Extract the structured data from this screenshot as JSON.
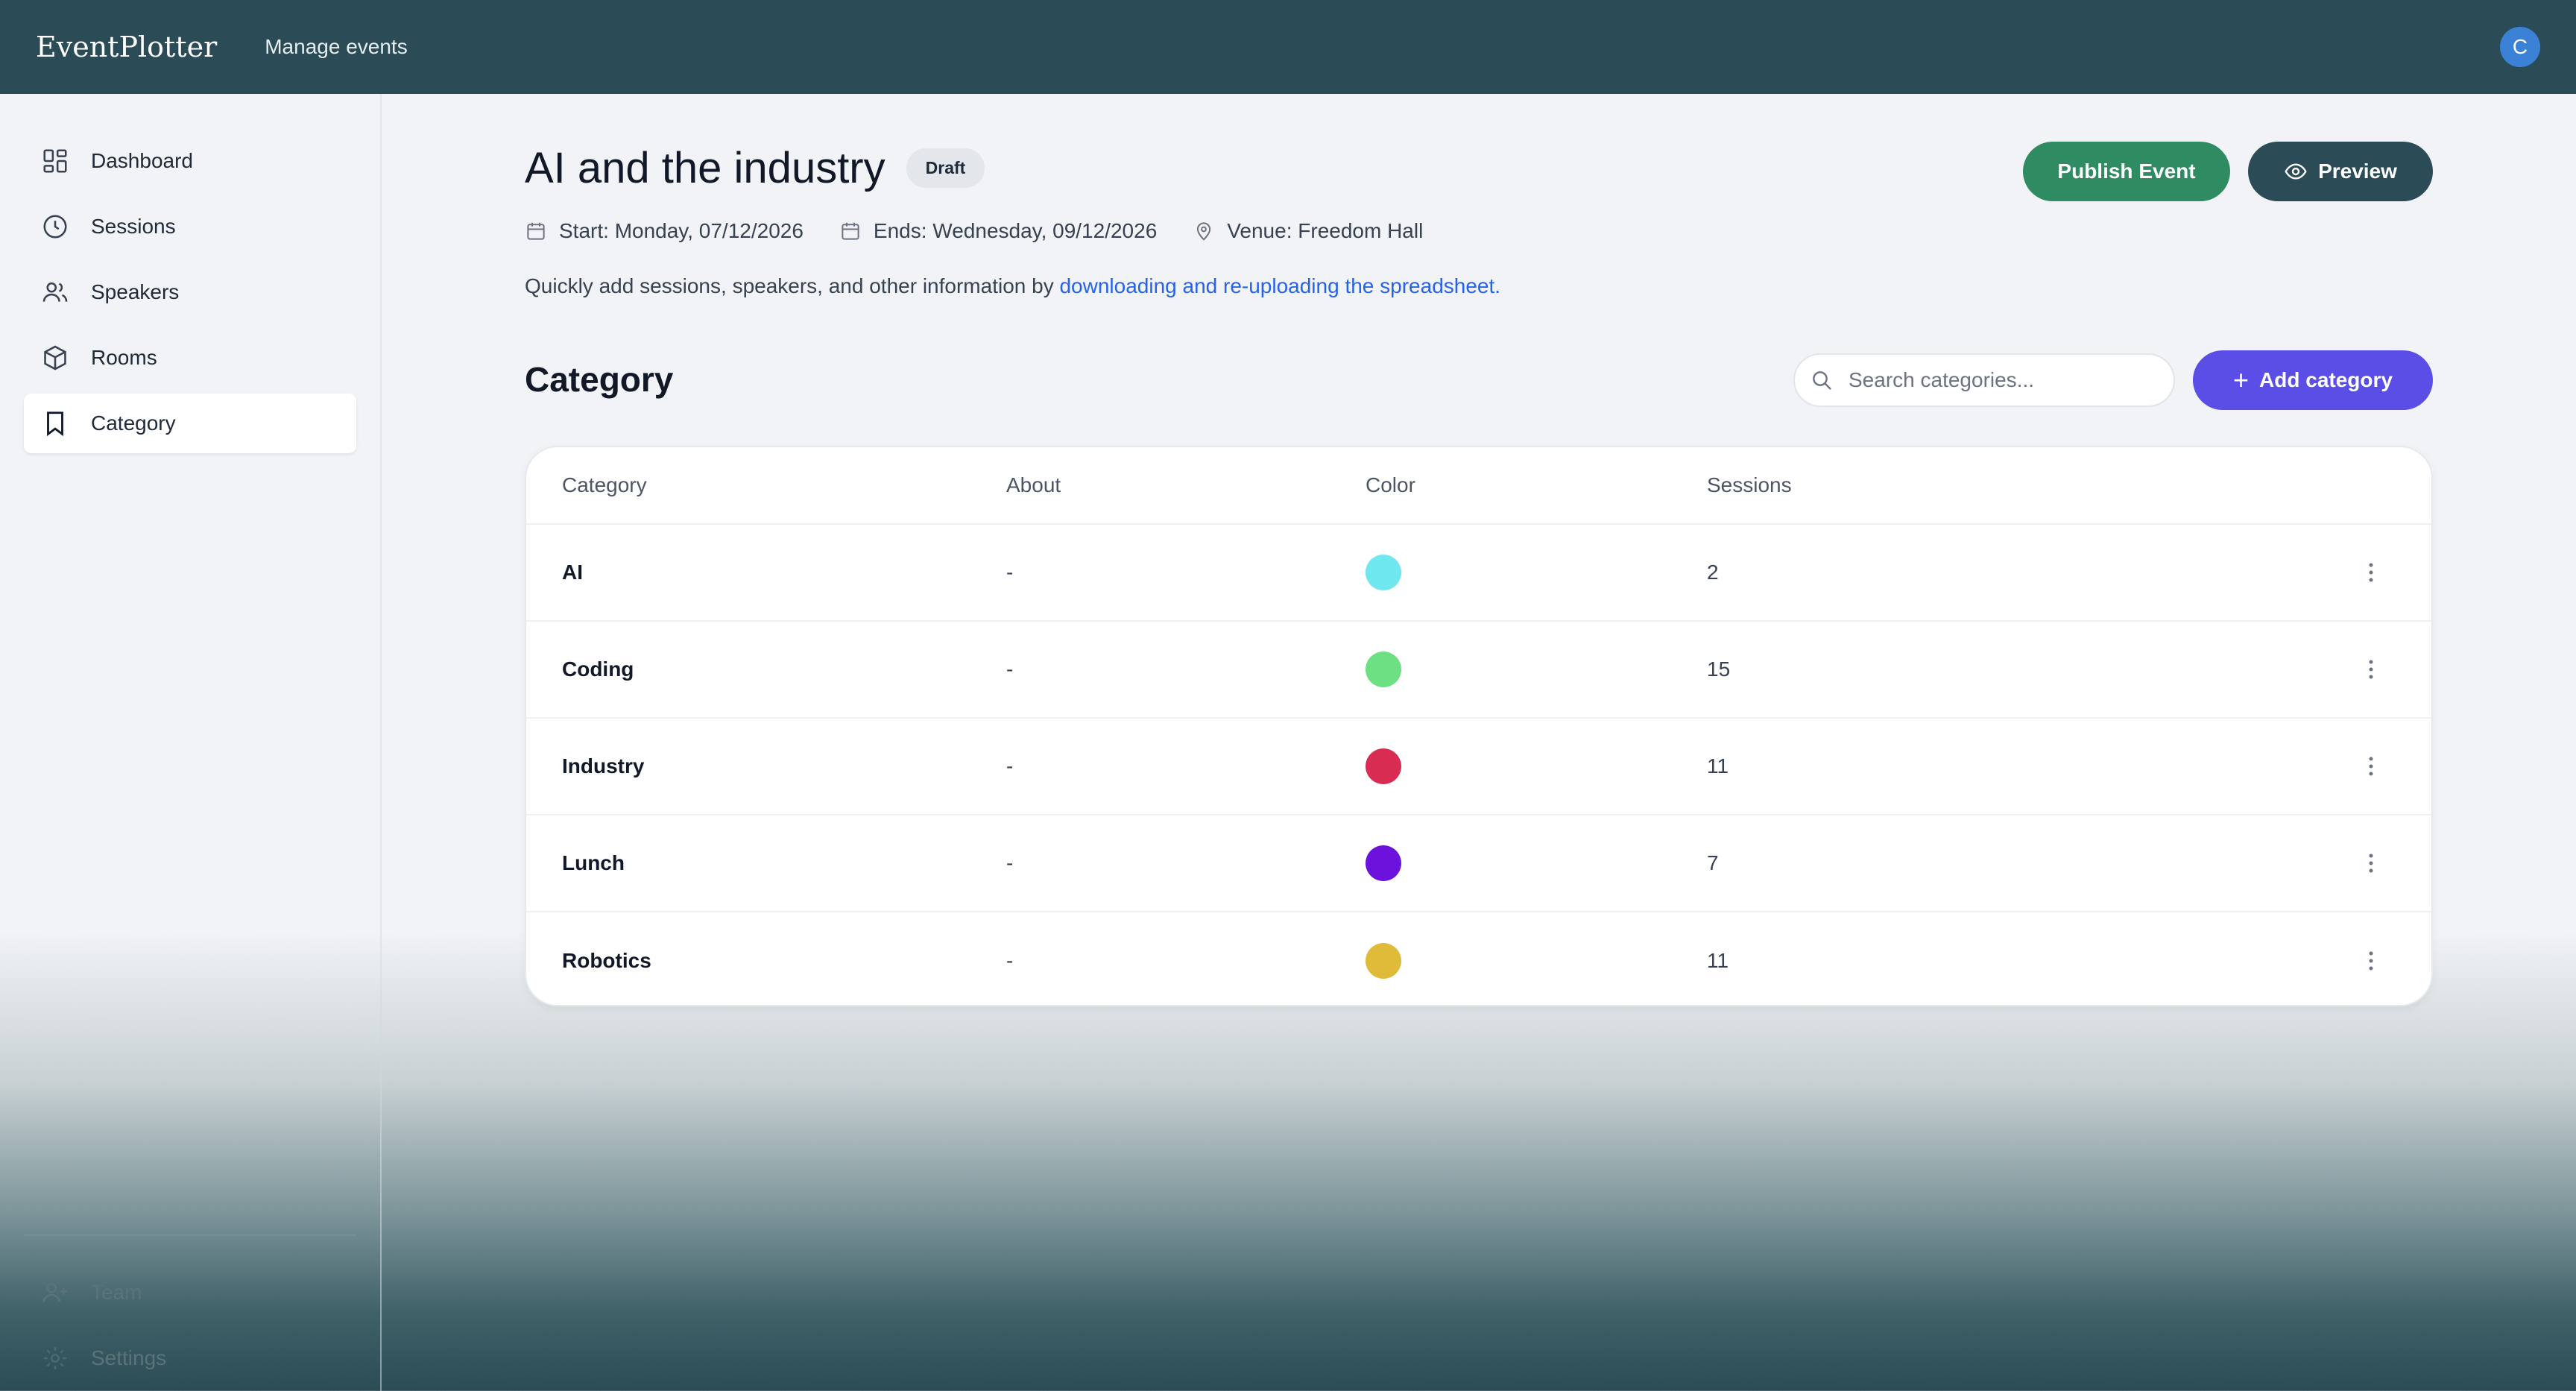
{
  "topbar": {
    "brand": "EventPlotter",
    "nav_label": "Manage events",
    "avatar_initial": "C"
  },
  "sidebar": {
    "items": [
      {
        "label": "Dashboard",
        "icon": "grid-icon"
      },
      {
        "label": "Sessions",
        "icon": "clock-icon"
      },
      {
        "label": "Speakers",
        "icon": "users-icon"
      },
      {
        "label": "Rooms",
        "icon": "cube-icon"
      },
      {
        "label": "Category",
        "icon": "bookmark-icon",
        "active": true
      }
    ],
    "bottom_items": [
      {
        "label": "Team",
        "icon": "user-plus-icon"
      },
      {
        "label": "Settings",
        "icon": "gear-icon"
      }
    ]
  },
  "event": {
    "title": "AI and the industry",
    "status": "Draft",
    "start": "Start: Monday, 07/12/2026",
    "end": "Ends: Wednesday, 09/12/2026",
    "venue": "Venue: Freedom Hall",
    "help_text": "Quickly add sessions, speakers, and other information by ",
    "help_link": "downloading and re-uploading the spreadsheet."
  },
  "actions": {
    "publish_label": "Publish Event",
    "preview_label": "Preview"
  },
  "category": {
    "section_title": "Category",
    "search_placeholder": "Search categories...",
    "add_label": "Add category",
    "columns": [
      "Category",
      "About",
      "Color",
      "Sessions"
    ],
    "rows": [
      {
        "name": "AI",
        "about": "-",
        "color": "#6ee7ee",
        "sessions": "2"
      },
      {
        "name": "Coding",
        "about": "-",
        "color": "#6ee084",
        "sessions": "15"
      },
      {
        "name": "Industry",
        "about": "-",
        "color": "#d92c52",
        "sessions": "11"
      },
      {
        "name": "Lunch",
        "about": "-",
        "color": "#6d12dc",
        "sessions": "7"
      },
      {
        "name": "Robotics",
        "about": "-",
        "color": "#e0bb3a",
        "sessions": "11"
      }
    ]
  },
  "colors": {
    "topbar": "#2b4c57",
    "publish": "#2f8c62",
    "add": "#5b4ee6",
    "link": "#2563eb"
  }
}
